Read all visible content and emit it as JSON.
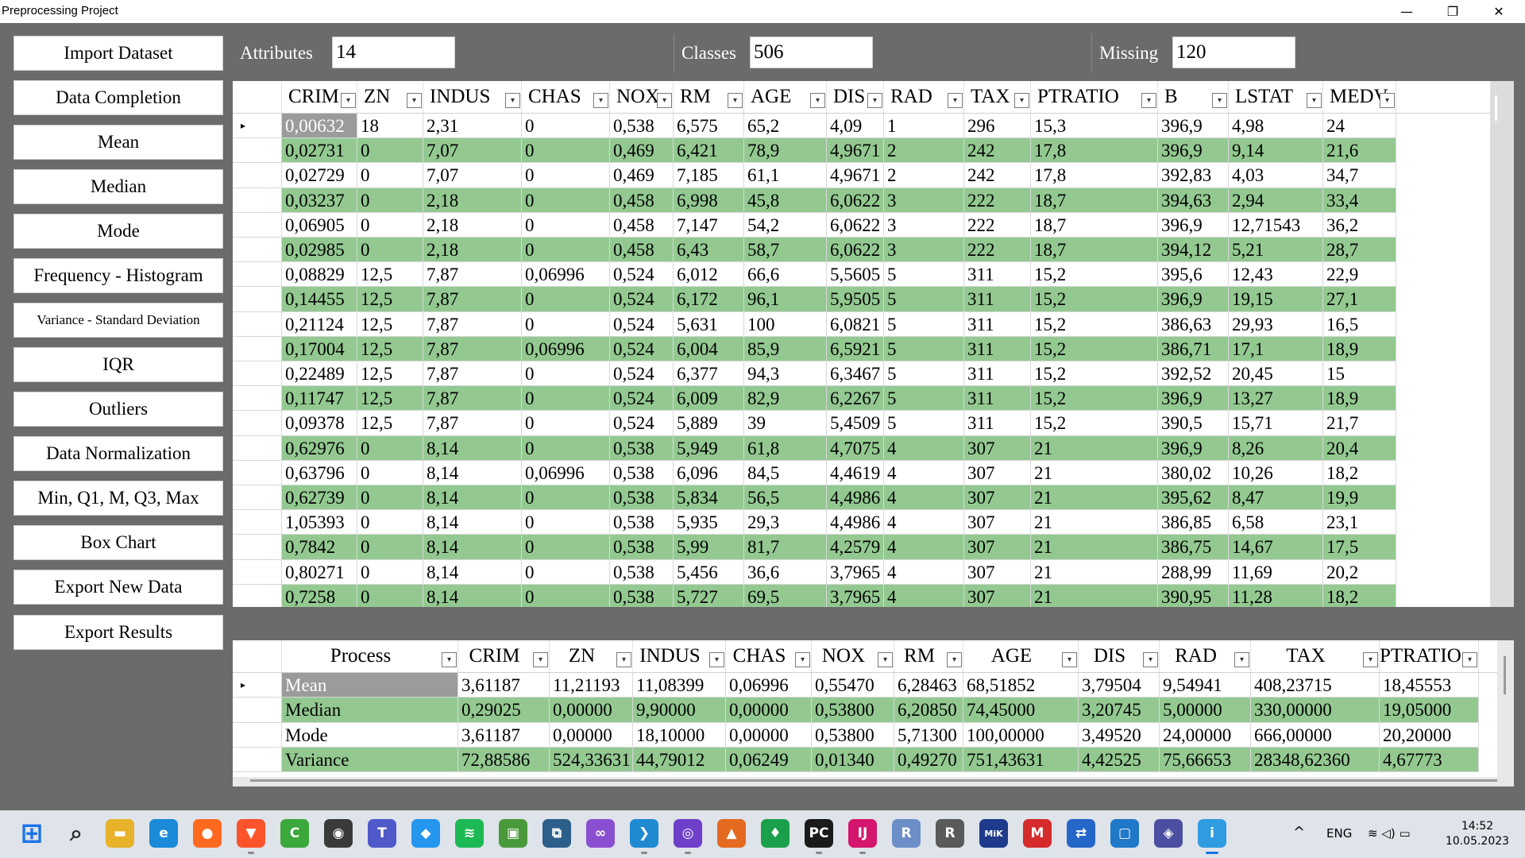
{
  "window": {
    "title": "Preprocessing Project",
    "minimize_glyph": "—",
    "restore_glyph": "❐",
    "close_glyph": "✕"
  },
  "nav": [
    {
      "id": "import-dataset",
      "label": "Import Dataset"
    },
    {
      "id": "data-completion",
      "label": "Data Completion"
    },
    {
      "id": "mean",
      "label": "Mean"
    },
    {
      "id": "median",
      "label": "Median"
    },
    {
      "id": "mode",
      "label": "Mode"
    },
    {
      "id": "frequency-histogram",
      "label": "Frequency - Histogram"
    },
    {
      "id": "variance-standard-deviation",
      "label": "Variance - Standard Deviation"
    },
    {
      "id": "iqr",
      "label": "IQR"
    },
    {
      "id": "outliers",
      "label": "Outliers"
    },
    {
      "id": "data-normalization",
      "label": "Data Normalization"
    },
    {
      "id": "min-q1-m-q3-max",
      "label": "Min, Q1, M, Q3, Max"
    },
    {
      "id": "box-chart",
      "label": "Box Chart"
    },
    {
      "id": "export-new-data",
      "label": "Export New Data"
    },
    {
      "id": "export-results",
      "label": "Export Results"
    }
  ],
  "stats": {
    "attributes_label": "Attributes",
    "attributes_value": "14",
    "classes_label": "Classes",
    "classes_value": "506",
    "missing_label": "Missing",
    "missing_value": "120"
  },
  "data_grid": {
    "columns": [
      "CRIM",
      "ZN",
      "INDUS",
      "CHAS",
      "NOX",
      "RM",
      "AGE",
      "DIS",
      "RAD",
      "TAX",
      "PTRATIO",
      "B",
      "LSTAT",
      "MEDV"
    ],
    "current_row_marker": "▸",
    "rows": [
      [
        "0,00632",
        "18",
        "2,31",
        "0",
        "0,538",
        "6,575",
        "65,2",
        "4,09",
        "1",
        "296",
        "15,3",
        "396,9",
        "4,98",
        "24"
      ],
      [
        "0,02731",
        "0",
        "7,07",
        "0",
        "0,469",
        "6,421",
        "78,9",
        "4,9671",
        "2",
        "242",
        "17,8",
        "396,9",
        "9,14",
        "21,6"
      ],
      [
        "0,02729",
        "0",
        "7,07",
        "0",
        "0,469",
        "7,185",
        "61,1",
        "4,9671",
        "2",
        "242",
        "17,8",
        "392,83",
        "4,03",
        "34,7"
      ],
      [
        "0,03237",
        "0",
        "2,18",
        "0",
        "0,458",
        "6,998",
        "45,8",
        "6,0622",
        "3",
        "222",
        "18,7",
        "394,63",
        "2,94",
        "33,4"
      ],
      [
        "0,06905",
        "0",
        "2,18",
        "0",
        "0,458",
        "7,147",
        "54,2",
        "6,0622",
        "3",
        "222",
        "18,7",
        "396,9",
        "12,71543",
        "36,2"
      ],
      [
        "0,02985",
        "0",
        "2,18",
        "0",
        "0,458",
        "6,43",
        "58,7",
        "6,0622",
        "3",
        "222",
        "18,7",
        "394,12",
        "5,21",
        "28,7"
      ],
      [
        "0,08829",
        "12,5",
        "7,87",
        "0,06996",
        "0,524",
        "6,012",
        "66,6",
        "5,5605",
        "5",
        "311",
        "15,2",
        "395,6",
        "12,43",
        "22,9"
      ],
      [
        "0,14455",
        "12,5",
        "7,87",
        "0",
        "0,524",
        "6,172",
        "96,1",
        "5,9505",
        "5",
        "311",
        "15,2",
        "396,9",
        "19,15",
        "27,1"
      ],
      [
        "0,21124",
        "12,5",
        "7,87",
        "0",
        "0,524",
        "5,631",
        "100",
        "6,0821",
        "5",
        "311",
        "15,2",
        "386,63",
        "29,93",
        "16,5"
      ],
      [
        "0,17004",
        "12,5",
        "7,87",
        "0,06996",
        "0,524",
        "6,004",
        "85,9",
        "6,5921",
        "5",
        "311",
        "15,2",
        "386,71",
        "17,1",
        "18,9"
      ],
      [
        "0,22489",
        "12,5",
        "7,87",
        "0",
        "0,524",
        "6,377",
        "94,3",
        "6,3467",
        "5",
        "311",
        "15,2",
        "392,52",
        "20,45",
        "15"
      ],
      [
        "0,11747",
        "12,5",
        "7,87",
        "0",
        "0,524",
        "6,009",
        "82,9",
        "6,2267",
        "5",
        "311",
        "15,2",
        "396,9",
        "13,27",
        "18,9"
      ],
      [
        "0,09378",
        "12,5",
        "7,87",
        "0",
        "0,524",
        "5,889",
        "39",
        "5,4509",
        "5",
        "311",
        "15,2",
        "390,5",
        "15,71",
        "21,7"
      ],
      [
        "0,62976",
        "0",
        "8,14",
        "0",
        "0,538",
        "5,949",
        "61,8",
        "4,7075",
        "4",
        "307",
        "21",
        "396,9",
        "8,26",
        "20,4"
      ],
      [
        "0,63796",
        "0",
        "8,14",
        "0,06996",
        "0,538",
        "6,096",
        "84,5",
        "4,4619",
        "4",
        "307",
        "21",
        "380,02",
        "10,26",
        "18,2"
      ],
      [
        "0,62739",
        "0",
        "8,14",
        "0",
        "0,538",
        "5,834",
        "56,5",
        "4,4986",
        "4",
        "307",
        "21",
        "395,62",
        "8,47",
        "19,9"
      ],
      [
        "1,05393",
        "0",
        "8,14",
        "0",
        "0,538",
        "5,935",
        "29,3",
        "4,4986",
        "4",
        "307",
        "21",
        "386,85",
        "6,58",
        "23,1"
      ],
      [
        "0,7842",
        "0",
        "8,14",
        "0",
        "0,538",
        "5,99",
        "81,7",
        "4,2579",
        "4",
        "307",
        "21",
        "386,75",
        "14,67",
        "17,5"
      ],
      [
        "0,80271",
        "0",
        "8,14",
        "0",
        "0,538",
        "5,456",
        "36,6",
        "3,7965",
        "4",
        "307",
        "21",
        "288,99",
        "11,69",
        "20,2"
      ],
      [
        "0,7258",
        "0",
        "8,14",
        "0",
        "0,538",
        "5,727",
        "69,5",
        "3,7965",
        "4",
        "307",
        "21",
        "390,95",
        "11,28",
        "18,2"
      ]
    ]
  },
  "results_grid": {
    "columns": [
      "Process",
      "CRIM",
      "ZN",
      "INDUS",
      "CHAS",
      "NOX",
      "RM",
      "AGE",
      "DIS",
      "RAD",
      "TAX",
      "PTRATIO"
    ],
    "current_row_marker": "▸",
    "rows": [
      [
        "Mean",
        "3,61187",
        "11,21193",
        "11,08399",
        "0,06996",
        "0,55470",
        "6,28463",
        "68,51852",
        "3,79504",
        "9,54941",
        "408,23715",
        "18,45553"
      ],
      [
        "Median",
        "0,29025",
        "0,00000",
        "9,90000",
        "0,00000",
        "0,53800",
        "6,20850",
        "74,45000",
        "3,20745",
        "5,00000",
        "330,00000",
        "19,05000"
      ],
      [
        "Mode",
        "3,61187",
        "0,00000",
        "18,10000",
        "0,00000",
        "0,53800",
        "5,71300",
        "100,00000",
        "3,49520",
        "24,00000",
        "666,00000",
        "20,20000"
      ],
      [
        "Variance",
        "72,88586",
        "524,33631",
        "44,79012",
        "0,06249",
        "0,01340",
        "0,49270",
        "751,43631",
        "4,42525",
        "75,66653",
        "28348,62360",
        "4,67773"
      ]
    ]
  },
  "taskbar": {
    "icons": [
      {
        "name": "windows-start-icon",
        "glyph": "⊞",
        "color": "#1a73e8"
      },
      {
        "name": "search-icon",
        "glyph": "⌕",
        "color": "#2b2b2b"
      },
      {
        "name": "file-explorer-icon",
        "glyph": "▬",
        "color": "#e8b22a"
      },
      {
        "name": "edge-icon",
        "glyph": "e",
        "color": "#1b8ad8"
      },
      {
        "name": "firefox-icon",
        "glyph": "●",
        "color": "#ff6a1f"
      },
      {
        "name": "brave-icon",
        "glyph": "▼",
        "color": "#fb542b"
      },
      {
        "name": "camtasia-icon",
        "glyph": "C",
        "color": "#3aa83a"
      },
      {
        "name": "obs-icon",
        "glyph": "◉",
        "color": "#3a3a3a"
      },
      {
        "name": "teams-icon",
        "glyph": "T",
        "color": "#5059c9"
      },
      {
        "name": "docker-icon",
        "glyph": "◆",
        "color": "#2496ed"
      },
      {
        "name": "spotify-icon",
        "glyph": "≋",
        "color": "#1db954"
      },
      {
        "name": "image-editor-icon",
        "glyph": "▣",
        "color": "#4a9a3c"
      },
      {
        "name": "vmware-icon",
        "glyph": "⧉",
        "color": "#2c5f8a"
      },
      {
        "name": "visual-studio-icon",
        "glyph": "∞",
        "color": "#8a4fd0"
      },
      {
        "name": "vscode-icon",
        "glyph": "❯",
        "color": "#1f8ad2"
      },
      {
        "name": "github-desktop-icon",
        "glyph": "◎",
        "color": "#6e40c9"
      },
      {
        "name": "matlab-icon",
        "glyph": "▲",
        "color": "#e36a1e"
      },
      {
        "name": "bitdefender-icon",
        "glyph": "♦",
        "color": "#1aa04a"
      },
      {
        "name": "pycharm-icon",
        "glyph": "PC",
        "color": "#1a1a1a"
      },
      {
        "name": "intellij-icon",
        "glyph": "IJ",
        "color": "#d4166e"
      },
      {
        "name": "r-icon",
        "glyph": "R",
        "color": "#6c8fc7"
      },
      {
        "name": "rstudio-icon",
        "glyph": "R",
        "color": "#5a5a5a"
      },
      {
        "name": "miktex-icon",
        "glyph": "MiK",
        "color": "#1e3a8a"
      },
      {
        "name": "mendeley-icon",
        "glyph": "M",
        "color": "#d52b2b"
      },
      {
        "name": "network-tool-icon",
        "glyph": "⇄",
        "color": "#2467c8"
      },
      {
        "name": "virtualbox-icon",
        "glyph": "▢",
        "color": "#1f78c8"
      },
      {
        "name": "remote-app-icon",
        "glyph": "◈",
        "color": "#4b4fa0"
      },
      {
        "name": "running-app-icon",
        "glyph": "i",
        "color": "#2f9be0"
      }
    ],
    "tray_chevron": "^",
    "language": "ENG",
    "tray_glyphs": "≋ ◁) ▭",
    "time": "14:52",
    "date": "10.05.2023"
  }
}
